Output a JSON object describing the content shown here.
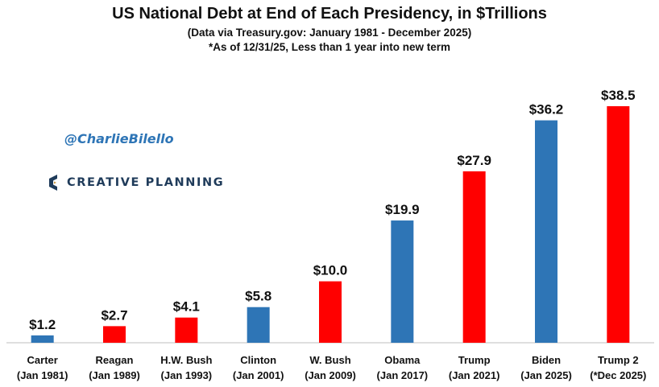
{
  "header": {
    "title": "US National Debt at End of Each Presidency, in $Trillions",
    "subtitle1": "(Data via Treasury.gov: January 1981 - December 2025)",
    "subtitle2": "*As of 12/31/25, Less than 1 year into new term"
  },
  "watermark": {
    "handle": "@CharlieBilello",
    "brand": "CREATIVE PLANNING"
  },
  "colors": {
    "democrat": "#2e75b6",
    "republican": "#ff0000",
    "axis": "#bfbfbf",
    "brand_dark": "#1f3b5a",
    "brand_gold": "#c8963e"
  },
  "chart_data": {
    "type": "bar",
    "title": "US National Debt at End of Each Presidency, in $Trillions",
    "xlabel": "",
    "ylabel": "",
    "ylim": [
      0,
      40
    ],
    "grid": false,
    "legend": "none",
    "categories": [
      [
        "Carter",
        "(Jan 1981)"
      ],
      [
        "Reagan",
        "(Jan 1989)"
      ],
      [
        "H.W. Bush",
        "(Jan 1993)"
      ],
      [
        "Clinton",
        "(Jan 2001)"
      ],
      [
        "W. Bush",
        "(Jan 2009)"
      ],
      [
        "Obama",
        "(Jan 2017)"
      ],
      [
        "Trump",
        "(Jan 2021)"
      ],
      [
        "Biden",
        "(Jan 2025)"
      ],
      [
        "Trump 2",
        "(*Dec 2025)"
      ]
    ],
    "values": [
      1.2,
      2.7,
      4.1,
      5.8,
      10.0,
      19.9,
      27.9,
      36.2,
      38.5
    ],
    "value_labels": [
      "$1.2",
      "$2.7",
      "$4.1",
      "$5.8",
      "$10.0",
      "$19.9",
      "$27.9",
      "$36.2",
      "$38.5"
    ],
    "party": [
      "democrat",
      "republican",
      "republican",
      "democrat",
      "republican",
      "democrat",
      "republican",
      "democrat",
      "republican"
    ]
  }
}
